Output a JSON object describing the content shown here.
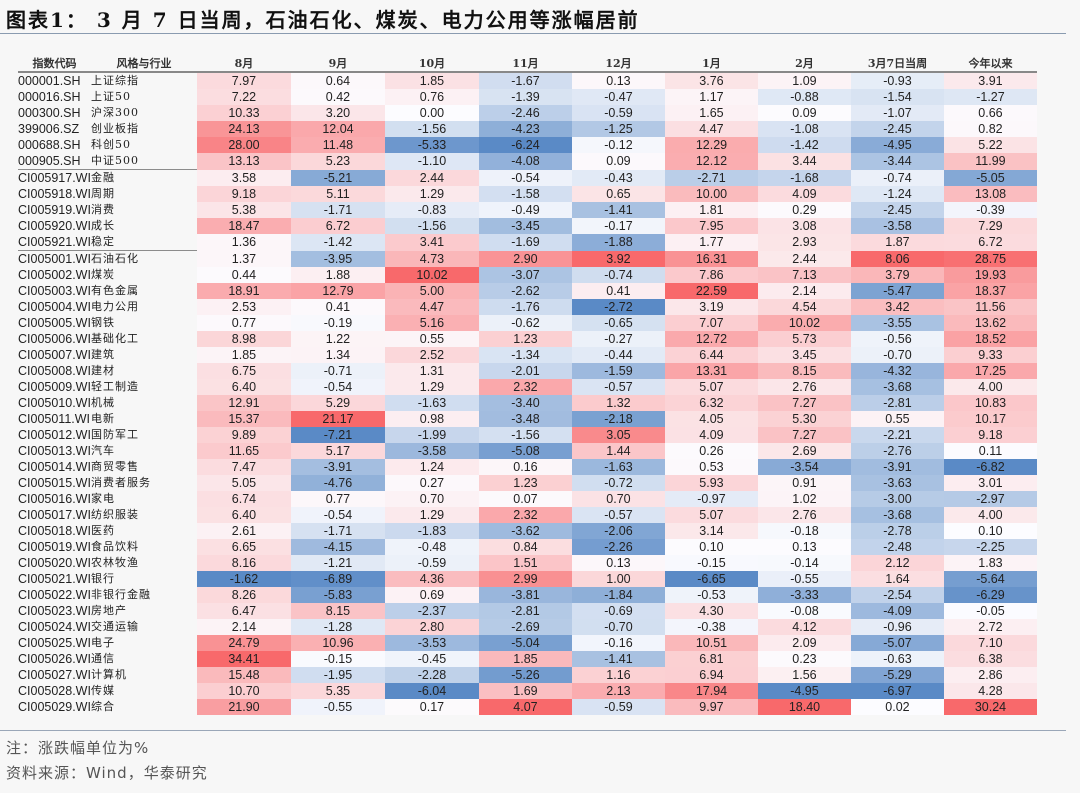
{
  "title": "图表1： 3 月 7 日当周，石油石化、煤炭、电力公用等涨幅居前",
  "table": {
    "headers": [
      "指数代码",
      "风格与行业",
      "8月",
      "9月",
      "10月",
      "11月",
      "12月",
      "1月",
      "2月",
      "3月7日当周",
      "今年以来"
    ],
    "group_separators_after": [
      5,
      10
    ],
    "rows": [
      {
        "code": "000001.SH",
        "name": "上证综指",
        "values": [
          7.97,
          0.64,
          1.85,
          -1.67,
          0.13,
          3.76,
          1.09,
          -0.93,
          3.91
        ]
      },
      {
        "code": "000016.SH",
        "name": "上证50",
        "values": [
          7.22,
          0.42,
          0.76,
          -1.39,
          -0.47,
          1.17,
          -0.88,
          -1.54,
          -1.27
        ]
      },
      {
        "code": "000300.SH",
        "name": "沪深300",
        "values": [
          10.33,
          3.2,
          0.0,
          -2.46,
          -0.59,
          1.65,
          0.09,
          -1.07,
          0.66
        ]
      },
      {
        "code": "399006.SZ",
        "name": "创业板指",
        "values": [
          24.13,
          12.04,
          -1.56,
          -4.23,
          -1.25,
          4.47,
          -1.08,
          -2.45,
          0.82
        ]
      },
      {
        "code": "000688.SH",
        "name": "科创50",
        "values": [
          28.0,
          11.48,
          -5.33,
          -6.24,
          -0.12,
          12.29,
          -1.42,
          -4.95,
          5.22
        ]
      },
      {
        "code": "000905.SH",
        "name": "中证500",
        "values": [
          13.13,
          5.23,
          -1.1,
          -4.08,
          0.09,
          12.12,
          3.44,
          -3.44,
          11.99
        ]
      },
      {
        "code": "CI005917.WI",
        "name": "金融",
        "values": [
          3.58,
          -5.21,
          2.44,
          -0.54,
          -0.43,
          -2.71,
          -1.68,
          -0.74,
          -5.05
        ]
      },
      {
        "code": "CI005918.WI",
        "name": "周期",
        "values": [
          9.18,
          5.11,
          1.29,
          -1.58,
          0.65,
          10.0,
          4.09,
          -1.24,
          13.08
        ]
      },
      {
        "code": "CI005919.WI",
        "name": "消费",
        "values": [
          5.38,
          -1.71,
          -0.83,
          -0.49,
          -1.41,
          1.81,
          0.29,
          -2.45,
          -0.39
        ]
      },
      {
        "code": "CI005920.WI",
        "name": "成长",
        "values": [
          18.47,
          6.72,
          -1.56,
          -3.45,
          -0.17,
          7.95,
          3.08,
          -3.58,
          7.29
        ]
      },
      {
        "code": "CI005921.WI",
        "name": "稳定",
        "values": [
          1.36,
          -1.42,
          3.41,
          -1.69,
          -1.88,
          1.77,
          2.93,
          1.87,
          6.72
        ]
      },
      {
        "code": "CI005001.WI",
        "name": "石油石化",
        "values": [
          1.37,
          -3.95,
          4.73,
          2.9,
          3.92,
          16.31,
          2.44,
          8.06,
          28.75
        ]
      },
      {
        "code": "CI005002.WI",
        "name": "煤炭",
        "values": [
          0.44,
          1.88,
          10.02,
          -3.07,
          -0.74,
          7.86,
          7.13,
          3.79,
          19.93
        ]
      },
      {
        "code": "CI005003.WI",
        "name": "有色金属",
        "values": [
          18.91,
          12.79,
          5.0,
          -2.62,
          0.41,
          22.59,
          2.14,
          -5.47,
          18.37
        ]
      },
      {
        "code": "CI005004.WI",
        "name": "电力公用",
        "values": [
          2.53,
          0.41,
          4.47,
          -1.76,
          -2.72,
          3.19,
          4.54,
          3.42,
          11.56
        ]
      },
      {
        "code": "CI005005.WI",
        "name": "钢铁",
        "values": [
          0.77,
          -0.19,
          5.16,
          -0.62,
          -0.65,
          7.07,
          10.02,
          -3.55,
          13.62
        ]
      },
      {
        "code": "CI005006.WI",
        "name": "基础化工",
        "values": [
          8.98,
          1.22,
          0.55,
          1.23,
          -0.27,
          12.72,
          5.73,
          -0.56,
          18.52
        ]
      },
      {
        "code": "CI005007.WI",
        "name": "建筑",
        "values": [
          1.85,
          1.34,
          2.52,
          -1.34,
          -0.44,
          6.44,
          3.45,
          -0.7,
          9.33
        ]
      },
      {
        "code": "CI005008.WI",
        "name": "建材",
        "values": [
          6.75,
          -0.71,
          1.31,
          -2.01,
          -1.59,
          13.31,
          8.15,
          -4.32,
          17.25
        ]
      },
      {
        "code": "CI005009.WI",
        "name": "轻工制造",
        "values": [
          6.4,
          -0.54,
          1.29,
          2.32,
          -0.57,
          5.07,
          2.76,
          -3.68,
          4.0
        ]
      },
      {
        "code": "CI005010.WI",
        "name": "机械",
        "values": [
          12.91,
          5.29,
          -1.63,
          -3.4,
          1.32,
          6.32,
          7.27,
          -2.81,
          10.83
        ]
      },
      {
        "code": "CI005011.WI",
        "name": "电新",
        "values": [
          15.37,
          21.17,
          0.98,
          -3.48,
          -2.18,
          4.05,
          5.3,
          0.55,
          10.17
        ]
      },
      {
        "code": "CI005012.WI",
        "name": "国防军工",
        "values": [
          9.89,
          -7.21,
          -1.99,
          -1.56,
          3.05,
          4.09,
          7.27,
          -2.21,
          9.18
        ]
      },
      {
        "code": "CI005013.WI",
        "name": "汽车",
        "values": [
          11.65,
          5.17,
          -3.58,
          -5.08,
          1.44,
          0.26,
          2.69,
          -2.76,
          0.11
        ]
      },
      {
        "code": "CI005014.WI",
        "name": "商贸零售",
        "values": [
          7.47,
          -3.91,
          1.24,
          0.16,
          -1.63,
          0.53,
          -3.54,
          -3.91,
          -6.82
        ]
      },
      {
        "code": "CI005015.WI",
        "name": "消费者服务",
        "values": [
          5.05,
          -4.76,
          0.27,
          1.23,
          -0.72,
          5.93,
          0.91,
          -3.63,
          3.01
        ]
      },
      {
        "code": "CI005016.WI",
        "name": "家电",
        "values": [
          6.74,
          0.77,
          0.7,
          0.07,
          0.7,
          -0.97,
          1.02,
          -3.0,
          -2.97
        ]
      },
      {
        "code": "CI005017.WI",
        "name": "纺织服装",
        "values": [
          6.4,
          -0.54,
          1.29,
          2.32,
          -0.57,
          5.07,
          2.76,
          -3.68,
          4.0
        ]
      },
      {
        "code": "CI005018.WI",
        "name": "医药",
        "values": [
          2.61,
          -1.71,
          -1.83,
          -3.62,
          -2.06,
          3.14,
          -0.18,
          -2.78,
          0.1
        ]
      },
      {
        "code": "CI005019.WI",
        "name": "食品饮料",
        "values": [
          6.65,
          -4.15,
          -0.48,
          0.84,
          -2.26,
          0.1,
          0.13,
          -2.48,
          -2.25
        ]
      },
      {
        "code": "CI005020.WI",
        "name": "农林牧渔",
        "values": [
          8.16,
          -1.21,
          -0.59,
          1.51,
          0.13,
          -0.15,
          -0.14,
          2.12,
          1.83
        ]
      },
      {
        "code": "CI005021.WI",
        "name": "银行",
        "values": [
          -1.62,
          -6.89,
          4.36,
          2.99,
          1.0,
          -6.65,
          -0.55,
          1.64,
          -5.64
        ]
      },
      {
        "code": "CI005022.WI",
        "name": "非银行金融",
        "values": [
          8.26,
          -5.83,
          0.69,
          -3.81,
          -1.84,
          -0.53,
          -3.33,
          -2.54,
          -6.29
        ]
      },
      {
        "code": "CI005023.WI",
        "name": "房地产",
        "values": [
          6.47,
          8.15,
          -2.37,
          -2.81,
          -0.69,
          4.3,
          -0.08,
          -4.09,
          -0.05
        ]
      },
      {
        "code": "CI005024.WI",
        "name": "交通运输",
        "values": [
          2.14,
          -1.28,
          2.8,
          -2.69,
          -0.7,
          -0.38,
          4.12,
          -0.96,
          2.72
        ]
      },
      {
        "code": "CI005025.WI",
        "name": "电子",
        "values": [
          24.79,
          10.96,
          -3.53,
          -5.04,
          -0.16,
          10.51,
          2.09,
          -5.07,
          7.1
        ]
      },
      {
        "code": "CI005026.WI",
        "name": "通信",
        "values": [
          34.41,
          -0.15,
          -0.45,
          1.85,
          -1.41,
          6.81,
          0.23,
          -0.63,
          6.38
        ]
      },
      {
        "code": "CI005027.WI",
        "name": "计算机",
        "values": [
          15.48,
          -1.95,
          -2.28,
          -5.26,
          1.16,
          6.94,
          1.56,
          -5.29,
          2.86
        ]
      },
      {
        "code": "CI005028.WI",
        "name": "传媒",
        "values": [
          10.7,
          5.35,
          -6.04,
          1.69,
          2.13,
          17.94,
          -4.95,
          -6.97,
          4.28
        ]
      },
      {
        "code": "CI005029.WI",
        "name": "综合",
        "values": [
          21.9,
          -0.55,
          0.17,
          4.07,
          -0.59,
          9.97,
          18.4,
          0.02,
          30.24
        ]
      }
    ]
  },
  "colors": {
    "positive_max": "#f8696b",
    "neutral": "#fcfcff",
    "negative_max": "#5a8ac6"
  },
  "footnotes": {
    "note": "注：涨跌幅单位为%",
    "source": "资料来源：Wind，华泰研究"
  }
}
